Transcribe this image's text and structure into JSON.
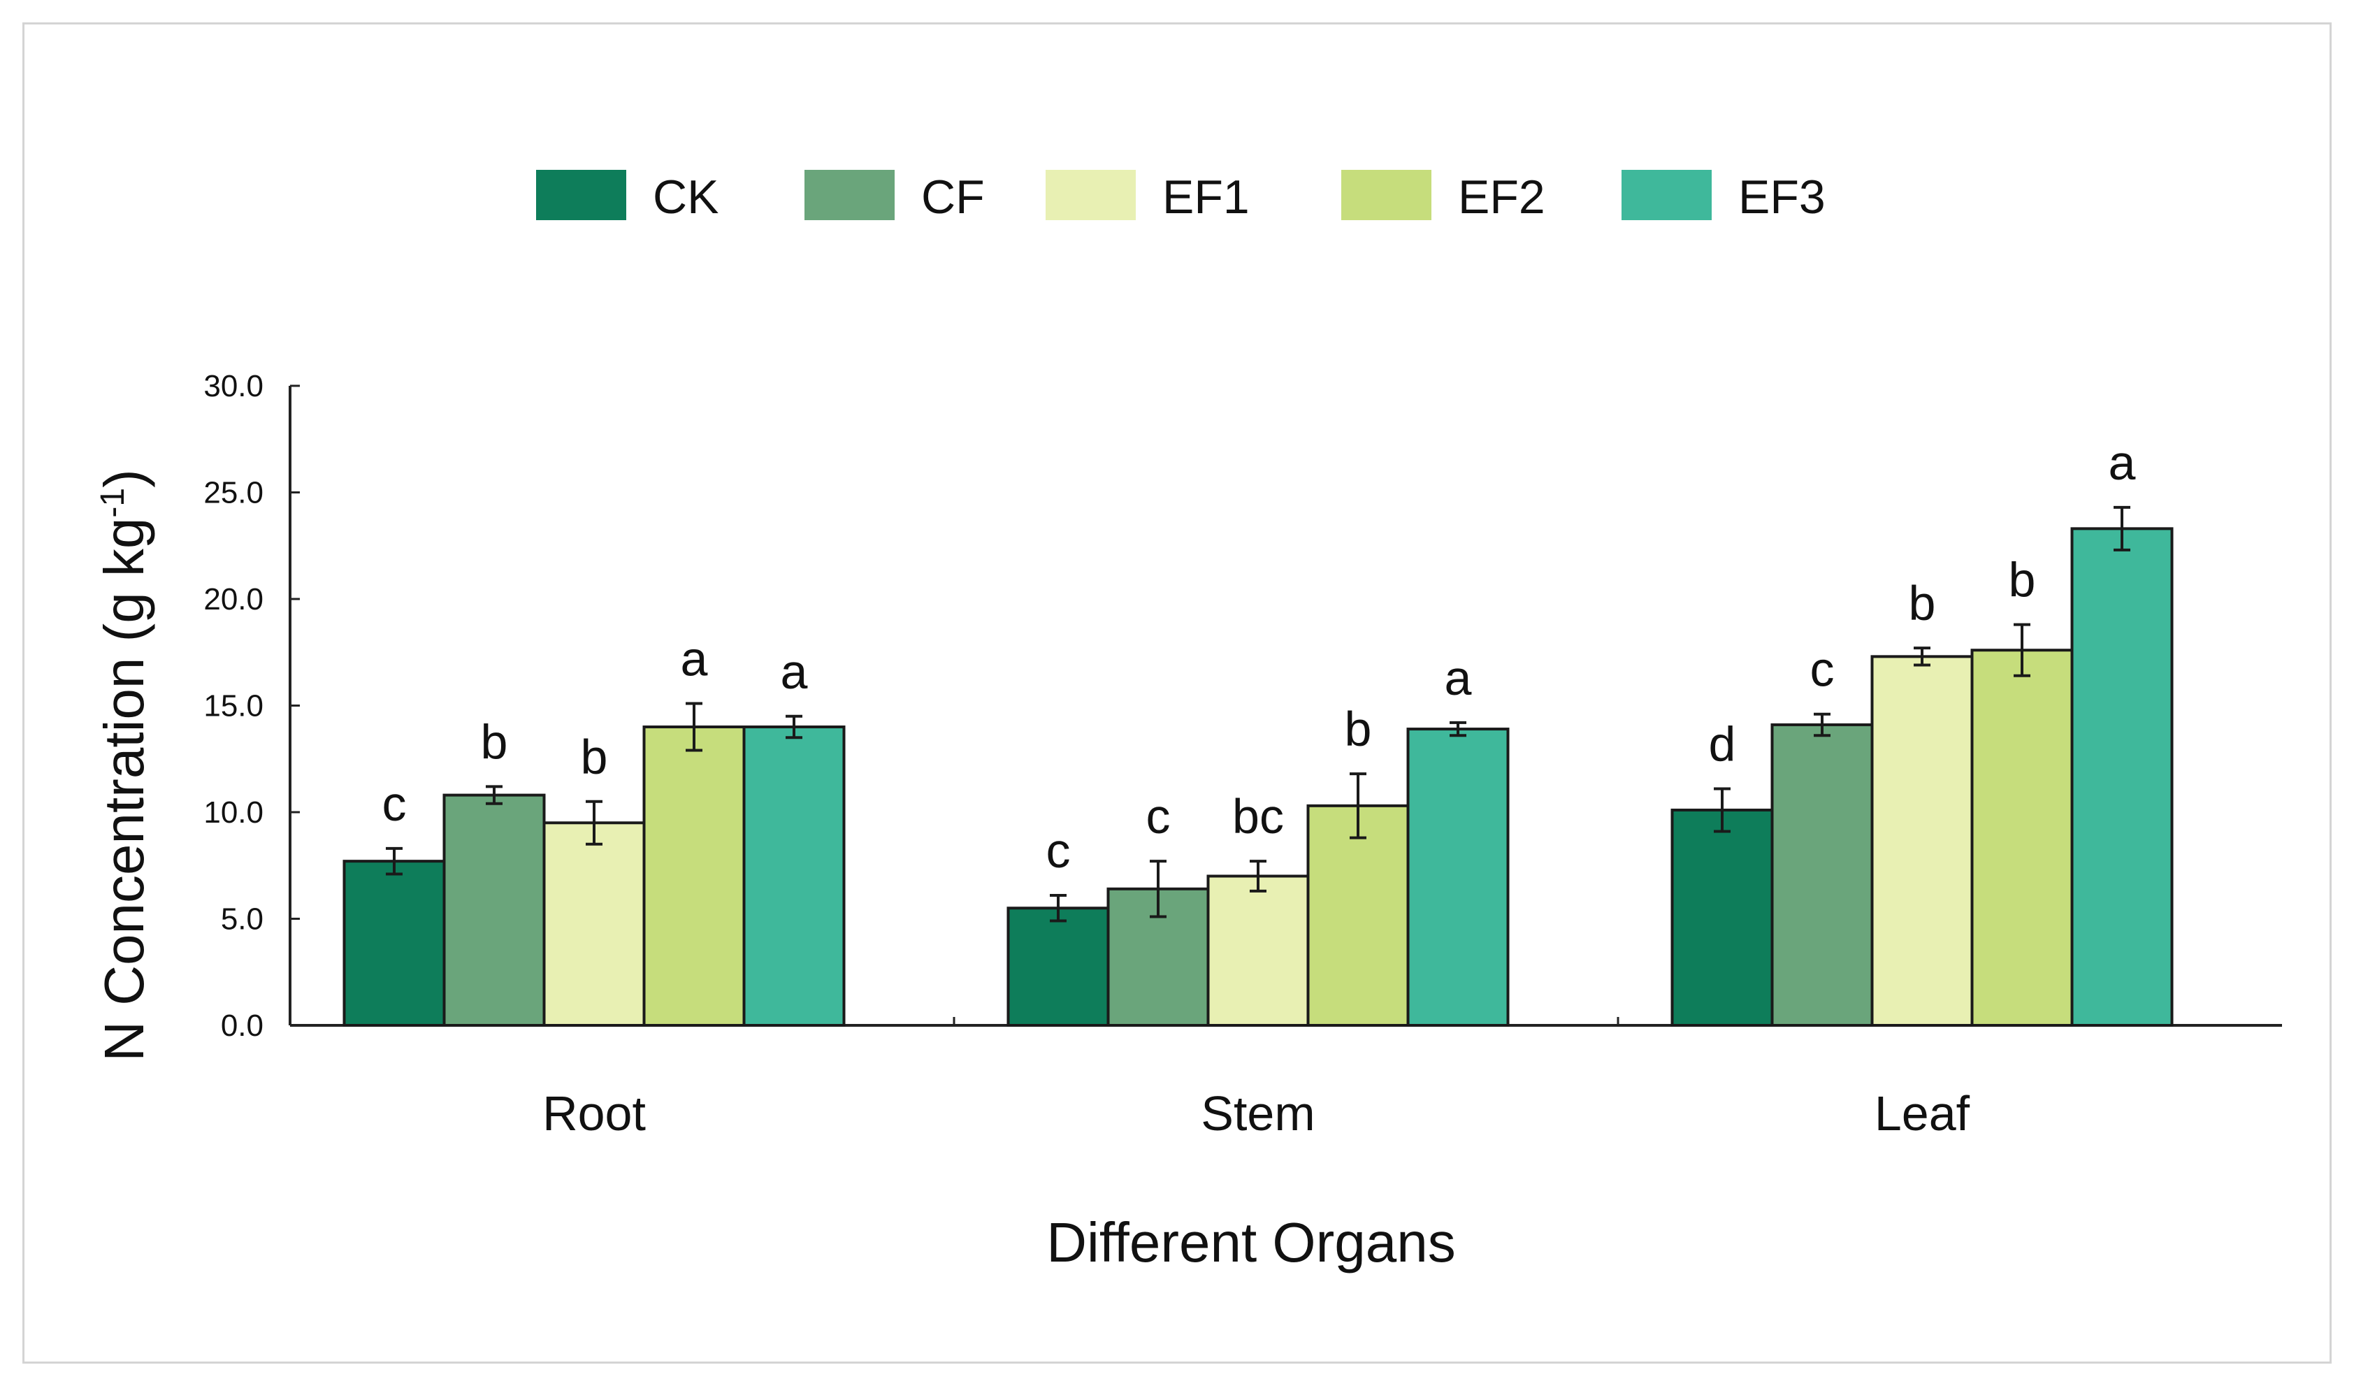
{
  "chart_data": {
    "type": "bar",
    "title": "",
    "xlabel": "Different Organs",
    "ylabel_main": "N Concentration (g kg",
    "ylabel_sup": "-1",
    "ylabel_close": ")",
    "ylim": [
      0,
      30
    ],
    "yticks": [
      0,
      5,
      10,
      15,
      20,
      25,
      30
    ],
    "ytick_labels": [
      "0.0",
      "5.0",
      "10.0",
      "15.0",
      "20.0",
      "25.0",
      "30.0"
    ],
    "categories": [
      "Root",
      "Stem",
      "Leaf"
    ],
    "legend_position": "top-center",
    "series": [
      {
        "name": "CK",
        "color": "#0e7d5a",
        "values": [
          7.7,
          5.5,
          10.1
        ],
        "errors": [
          0.6,
          0.6,
          1.0
        ],
        "letters": [
          "c",
          "c",
          "d"
        ]
      },
      {
        "name": "CF",
        "color": "#6aa57b",
        "values": [
          10.8,
          6.4,
          14.1
        ],
        "errors": [
          0.4,
          1.3,
          0.5
        ],
        "letters": [
          "b",
          "c",
          "c"
        ]
      },
      {
        "name": "EF1",
        "color": "#e8f0b3",
        "values": [
          9.5,
          7.0,
          17.3
        ],
        "errors": [
          1.0,
          0.7,
          0.4
        ],
        "letters": [
          "b",
          "bc",
          "b"
        ]
      },
      {
        "name": "EF2",
        "color": "#c6dd7c",
        "values": [
          14.0,
          10.3,
          17.6
        ],
        "errors": [
          1.1,
          1.5,
          1.2
        ],
        "letters": [
          "a",
          "b",
          "b"
        ]
      },
      {
        "name": "EF3",
        "color": "#3fb89b",
        "values": [
          14.0,
          13.9,
          23.3
        ],
        "errors": [
          0.5,
          0.3,
          1.0
        ],
        "letters": [
          "a",
          "a",
          "a"
        ]
      }
    ]
  }
}
